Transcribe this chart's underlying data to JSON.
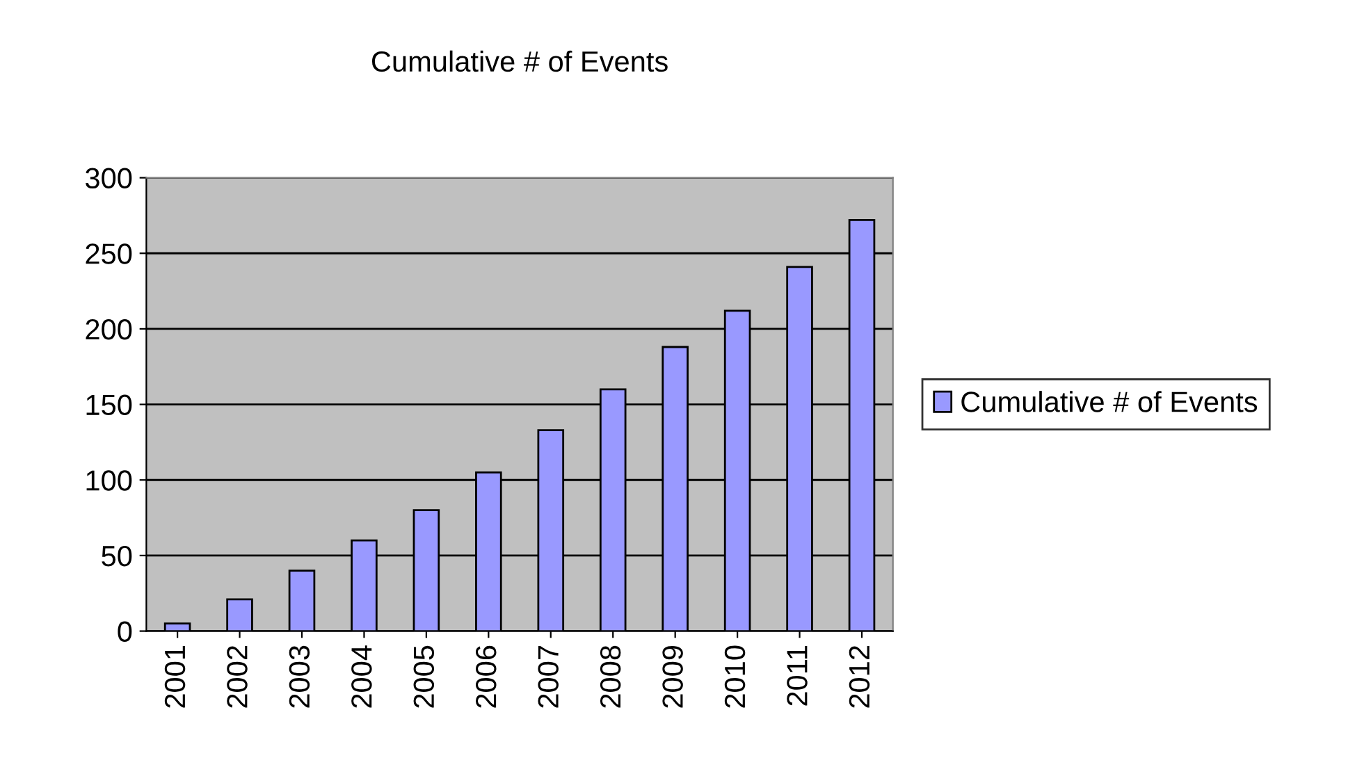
{
  "chart_data": {
    "type": "bar",
    "title": "Cumulative # of Events",
    "categories": [
      "2001",
      "2002",
      "2003",
      "2004",
      "2005",
      "2006",
      "2007",
      "2008",
      "2009",
      "2010",
      "2011",
      "2012"
    ],
    "series": [
      {
        "name": "Cumulative # of Events",
        "color": "#9999ff",
        "values": [
          5,
          21,
          40,
          60,
          80,
          105,
          133,
          160,
          188,
          212,
          241,
          272
        ]
      }
    ],
    "ylim": [
      0,
      300
    ],
    "yticks": [
      0,
      50,
      100,
      150,
      200,
      250,
      300
    ],
    "grid": "y",
    "legend": "right"
  }
}
